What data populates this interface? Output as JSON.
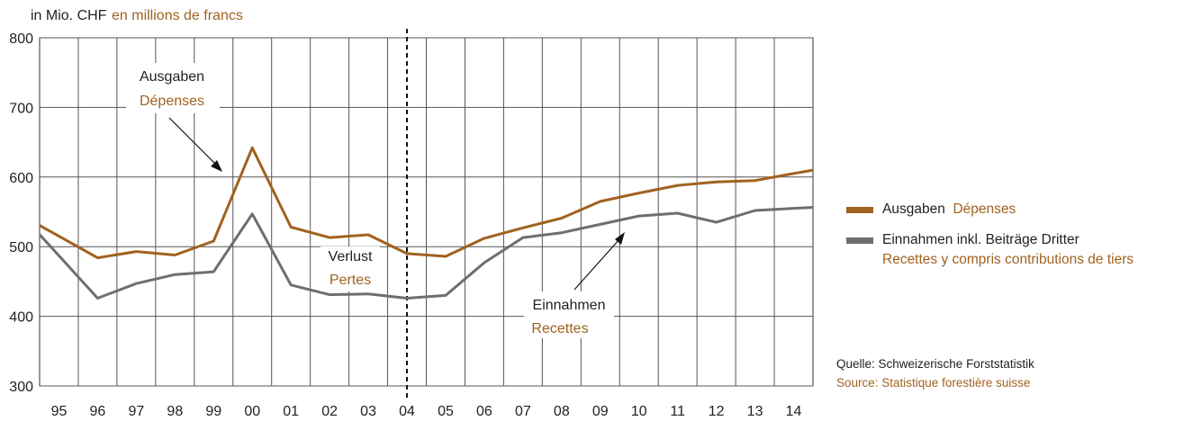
{
  "chart_data": {
    "type": "line",
    "ylabel": "in Mio. CHF",
    "ylabel_fr": "en millions de francs",
    "ylim": [
      300,
      800
    ],
    "yticks": [
      300,
      400,
      500,
      600,
      700,
      800
    ],
    "x": [
      "95",
      "96",
      "97",
      "98",
      "99",
      "00",
      "01",
      "02",
      "03",
      "04",
      "05",
      "06",
      "07",
      "08",
      "09",
      "10",
      "11",
      "12",
      "13",
      "14"
    ],
    "series": [
      {
        "name": "Ausgaben",
        "name_fr": "Dépenses",
        "color": "#a0621f",
        "values": [
          515,
          484,
          493,
          488,
          508,
          642,
          528,
          513,
          517,
          490,
          486,
          512,
          527,
          541,
          565,
          577,
          588,
          593,
          595,
          605
        ]
      },
      {
        "name": "Einnahmen inkl. Beiträge Dritter",
        "name_fr": "Recettes y compris contributions de tiers",
        "color": "#6d6e70",
        "values": [
          487,
          426,
          447,
          460,
          464,
          547,
          445,
          431,
          432,
          426,
          430,
          477,
          513,
          520,
          532,
          544,
          548,
          535,
          552,
          555
        ]
      }
    ],
    "annotations": [
      {
        "de": "Ausgaben",
        "fr": "Dépenses"
      },
      {
        "de": "Verlust",
        "fr": "Pertes"
      },
      {
        "de": "Einnahmen",
        "fr": "Recettes"
      }
    ],
    "divider_at": "04",
    "grid": true,
    "legend_position": "right",
    "source_de": "Quelle: Schweizerische Forststatistik",
    "source_fr": "Source: Statistique forestière suisse"
  }
}
